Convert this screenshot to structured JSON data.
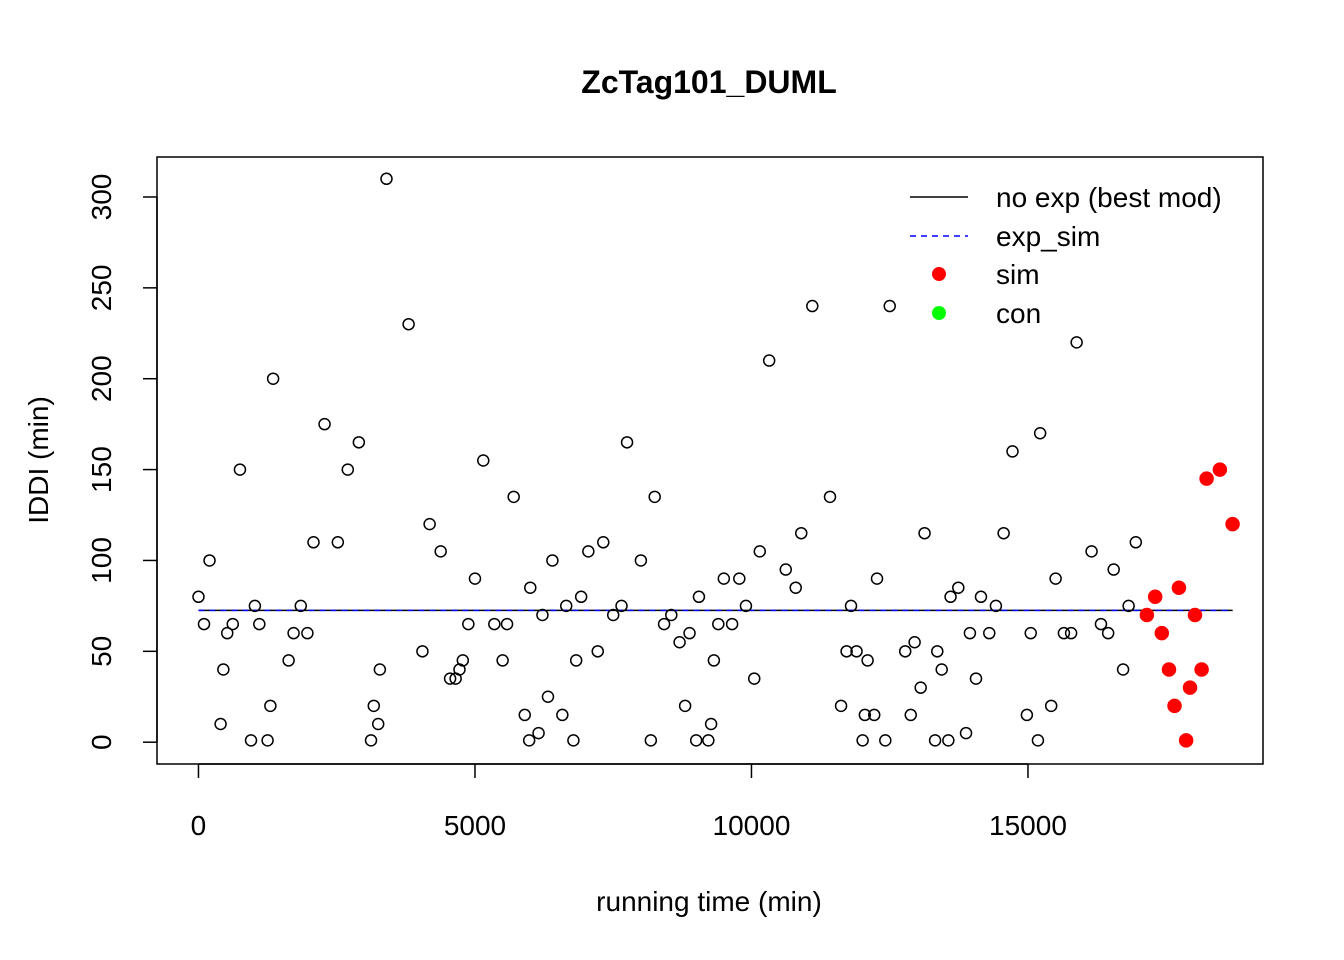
{
  "chart_data": {
    "type": "scatter",
    "title": "ZcTag101_DUML",
    "xlabel": "running time (min)",
    "ylabel": "IDDI (min)",
    "xlim": [
      -750,
      19250
    ],
    "ylim": [
      -12,
      322
    ],
    "x_ticks": [
      0,
      5000,
      10000,
      15000
    ],
    "y_ticks": [
      0,
      50,
      100,
      150,
      200,
      250,
      300
    ],
    "legend_position": "top-right",
    "legend": [
      {
        "label": "no exp (best mod)",
        "kind": "solid-line",
        "color": "#000000"
      },
      {
        "label": "exp_sim",
        "kind": "dashed-line",
        "color": "#0000FF"
      },
      {
        "label": "sim",
        "kind": "filled-point",
        "color": "#FF0000"
      },
      {
        "label": "con",
        "kind": "filled-point",
        "color": "#00FF00"
      }
    ],
    "lines": [
      {
        "name": "no exp (best mod)",
        "style": "solid",
        "color": "#000000",
        "x": [
          0,
          18700
        ],
        "y": [
          72.5,
          72.5
        ]
      },
      {
        "name": "exp_sim",
        "style": "dashed",
        "color": "#0000FF",
        "x": [
          0,
          18700
        ],
        "y": [
          72.5,
          72.5
        ]
      }
    ],
    "series": [
      {
        "name": "",
        "style": "open",
        "color": "#000000",
        "points": [
          [
            0,
            80
          ],
          [
            100,
            65
          ],
          [
            200,
            100
          ],
          [
            400,
            10
          ],
          [
            450,
            40
          ],
          [
            520,
            60
          ],
          [
            620,
            65
          ],
          [
            750,
            150
          ],
          [
            950,
            1
          ],
          [
            1020,
            75
          ],
          [
            1100,
            65
          ],
          [
            1250,
            1
          ],
          [
            1300,
            20
          ],
          [
            1350,
            200
          ],
          [
            1630,
            45
          ],
          [
            1720,
            60
          ],
          [
            1850,
            75
          ],
          [
            1970,
            60
          ],
          [
            2080,
            110
          ],
          [
            2280,
            175
          ],
          [
            2520,
            110
          ],
          [
            2700,
            150
          ],
          [
            2900,
            165
          ],
          [
            3120,
            1
          ],
          [
            3170,
            20
          ],
          [
            3250,
            10
          ],
          [
            3280,
            40
          ],
          [
            3400,
            310
          ],
          [
            3800,
            230
          ],
          [
            4050,
            50
          ],
          [
            4180,
            120
          ],
          [
            4380,
            105
          ],
          [
            4550,
            35
          ],
          [
            4650,
            35
          ],
          [
            4720,
            40
          ],
          [
            4780,
            45
          ],
          [
            4880,
            65
          ],
          [
            5000,
            90
          ],
          [
            5150,
            155
          ],
          [
            5350,
            65
          ],
          [
            5500,
            45
          ],
          [
            5580,
            65
          ],
          [
            5700,
            135
          ],
          [
            5900,
            15
          ],
          [
            5980,
            1
          ],
          [
            6000,
            85
          ],
          [
            6150,
            5
          ],
          [
            6220,
            70
          ],
          [
            6320,
            25
          ],
          [
            6400,
            100
          ],
          [
            6580,
            15
          ],
          [
            6650,
            75
          ],
          [
            6780,
            1
          ],
          [
            6830,
            45
          ],
          [
            6920,
            80
          ],
          [
            7050,
            105
          ],
          [
            7220,
            50
          ],
          [
            7320,
            110
          ],
          [
            7500,
            70
          ],
          [
            7650,
            75
          ],
          [
            7750,
            165
          ],
          [
            8000,
            100
          ],
          [
            8180,
            1
          ],
          [
            8250,
            135
          ],
          [
            8420,
            65
          ],
          [
            8550,
            70
          ],
          [
            8700,
            55
          ],
          [
            8800,
            20
          ],
          [
            8880,
            60
          ],
          [
            9000,
            1
          ],
          [
            9050,
            80
          ],
          [
            9220,
            1
          ],
          [
            9270,
            10
          ],
          [
            9320,
            45
          ],
          [
            9400,
            65
          ],
          [
            9500,
            90
          ],
          [
            9650,
            65
          ],
          [
            9780,
            90
          ],
          [
            9900,
            75
          ],
          [
            10050,
            35
          ],
          [
            10150,
            105
          ],
          [
            10320,
            210
          ],
          [
            10620,
            95
          ],
          [
            10800,
            85
          ],
          [
            10900,
            115
          ],
          [
            11100,
            240
          ],
          [
            11420,
            135
          ],
          [
            11620,
            20
          ],
          [
            11720,
            50
          ],
          [
            11800,
            75
          ],
          [
            11900,
            50
          ],
          [
            12010,
            1
          ],
          [
            12050,
            15
          ],
          [
            12100,
            45
          ],
          [
            12220,
            15
          ],
          [
            12270,
            90
          ],
          [
            12420,
            1
          ],
          [
            12500,
            240
          ],
          [
            12780,
            50
          ],
          [
            12880,
            15
          ],
          [
            12950,
            55
          ],
          [
            13060,
            30
          ],
          [
            13130,
            115
          ],
          [
            13320,
            1
          ],
          [
            13360,
            50
          ],
          [
            13440,
            40
          ],
          [
            13560,
            1
          ],
          [
            13600,
            80
          ],
          [
            13740,
            85
          ],
          [
            13880,
            5
          ],
          [
            13950,
            60
          ],
          [
            14060,
            35
          ],
          [
            14150,
            80
          ],
          [
            14300,
            60
          ],
          [
            14420,
            75
          ],
          [
            14560,
            115
          ],
          [
            14720,
            160
          ],
          [
            14980,
            15
          ],
          [
            15050,
            60
          ],
          [
            15180,
            1
          ],
          [
            15220,
            170
          ],
          [
            15420,
            20
          ],
          [
            15500,
            90
          ],
          [
            15650,
            60
          ],
          [
            15780,
            60
          ],
          [
            15880,
            220
          ],
          [
            16150,
            105
          ],
          [
            16320,
            65
          ],
          [
            16450,
            60
          ],
          [
            16550,
            95
          ],
          [
            16720,
            40
          ],
          [
            16820,
            75
          ],
          [
            16950,
            110
          ]
        ]
      },
      {
        "name": "sim",
        "style": "filled",
        "color": "#FF0000",
        "points": [
          [
            17150,
            70
          ],
          [
            17300,
            80
          ],
          [
            17420,
            60
          ],
          [
            17550,
            40
          ],
          [
            17650,
            20
          ],
          [
            17730,
            85
          ],
          [
            17860,
            1
          ],
          [
            17930,
            30
          ],
          [
            18020,
            70
          ],
          [
            18140,
            40
          ],
          [
            18230,
            145
          ],
          [
            18470,
            150
          ],
          [
            18700,
            120
          ]
        ]
      }
    ]
  }
}
